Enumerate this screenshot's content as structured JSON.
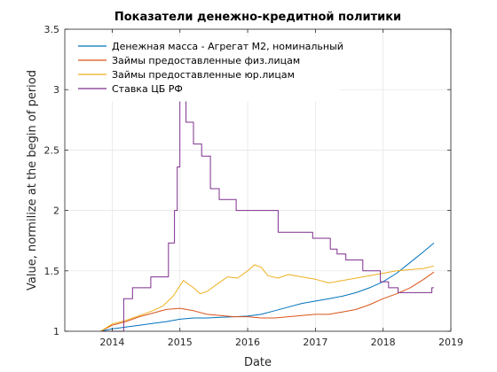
{
  "chart_data": {
    "type": "line",
    "title": "Показатели денежно-кредитной политики",
    "xlabel": "Date",
    "ylabel": "Value, normilize at the begin of period",
    "xlim": [
      2013.3,
      2019.0
    ],
    "ylim": [
      1,
      3.5
    ],
    "xticks": [
      2014,
      2015,
      2016,
      2017,
      2018,
      2019
    ],
    "yticks": [
      1,
      1.5,
      2,
      2.5,
      3,
      3.5
    ],
    "grid": true,
    "legend_position": "top-left",
    "series": [
      {
        "name": "Денежная масса - Агрегат М2, номинальный",
        "color": "#0072BD",
        "style": "line",
        "x": [
          2013.83,
          2014.0,
          2014.2,
          2014.4,
          2014.6,
          2014.8,
          2015.0,
          2015.2,
          2015.4,
          2015.6,
          2015.8,
          2016.0,
          2016.2,
          2016.4,
          2016.6,
          2016.8,
          2017.0,
          2017.2,
          2017.4,
          2017.6,
          2017.8,
          2018.0,
          2018.2,
          2018.4,
          2018.6,
          2018.75
        ],
        "y": [
          1.0,
          1.02,
          1.035,
          1.05,
          1.065,
          1.08,
          1.1,
          1.11,
          1.11,
          1.115,
          1.12,
          1.125,
          1.14,
          1.17,
          1.2,
          1.23,
          1.25,
          1.27,
          1.29,
          1.32,
          1.36,
          1.41,
          1.48,
          1.57,
          1.66,
          1.73
        ]
      },
      {
        "name": "Займы предоставленные физ.лицам",
        "color": "#D95319",
        "style": "line",
        "x": [
          2013.83,
          2014.0,
          2014.2,
          2014.4,
          2014.6,
          2014.8,
          2015.0,
          2015.2,
          2015.4,
          2015.6,
          2015.8,
          2016.0,
          2016.2,
          2016.4,
          2016.6,
          2016.8,
          2017.0,
          2017.2,
          2017.4,
          2017.6,
          2017.8,
          2018.0,
          2018.2,
          2018.4,
          2018.6,
          2018.75
        ],
        "y": [
          1.0,
          1.05,
          1.08,
          1.12,
          1.15,
          1.18,
          1.19,
          1.17,
          1.14,
          1.13,
          1.12,
          1.12,
          1.11,
          1.11,
          1.12,
          1.13,
          1.14,
          1.14,
          1.16,
          1.18,
          1.22,
          1.27,
          1.31,
          1.36,
          1.43,
          1.49
        ]
      },
      {
        "name": "Займы предоставленные юр.лицам",
        "color": "#EDB120",
        "style": "line",
        "x": [
          2013.83,
          2014.0,
          2014.2,
          2014.4,
          2014.6,
          2014.75,
          2014.9,
          2015.05,
          2015.2,
          2015.3,
          2015.4,
          2015.55,
          2015.7,
          2015.85,
          2016.0,
          2016.1,
          2016.2,
          2016.3,
          2016.45,
          2016.6,
          2016.8,
          2017.0,
          2017.2,
          2017.4,
          2017.6,
          2017.8,
          2018.0,
          2018.2,
          2018.4,
          2018.6,
          2018.75
        ],
        "y": [
          1.0,
          1.06,
          1.09,
          1.13,
          1.17,
          1.21,
          1.29,
          1.42,
          1.36,
          1.31,
          1.33,
          1.39,
          1.45,
          1.44,
          1.5,
          1.55,
          1.53,
          1.46,
          1.44,
          1.47,
          1.45,
          1.43,
          1.4,
          1.42,
          1.44,
          1.46,
          1.48,
          1.5,
          1.51,
          1.52,
          1.54
        ]
      },
      {
        "name": "Ставка ЦБ РФ",
        "color": "#7E2F8E",
        "style": "step",
        "x": [
          2013.83,
          2014.17,
          2014.3,
          2014.57,
          2014.83,
          2014.92,
          2014.96,
          2015.0,
          2015.09,
          2015.2,
          2015.32,
          2015.45,
          2015.58,
          2015.83,
          2016.45,
          2016.96,
          2017.22,
          2017.32,
          2017.45,
          2017.7,
          2017.96,
          2018.08,
          2018.22,
          2018.72,
          2018.75
        ],
        "y": [
          1.0,
          1.27,
          1.36,
          1.45,
          1.73,
          2.0,
          2.36,
          3.09,
          2.73,
          2.55,
          2.45,
          2.18,
          2.09,
          2.0,
          1.82,
          1.77,
          1.68,
          1.64,
          1.59,
          1.5,
          1.41,
          1.36,
          1.32,
          1.36,
          1.36
        ]
      }
    ]
  }
}
